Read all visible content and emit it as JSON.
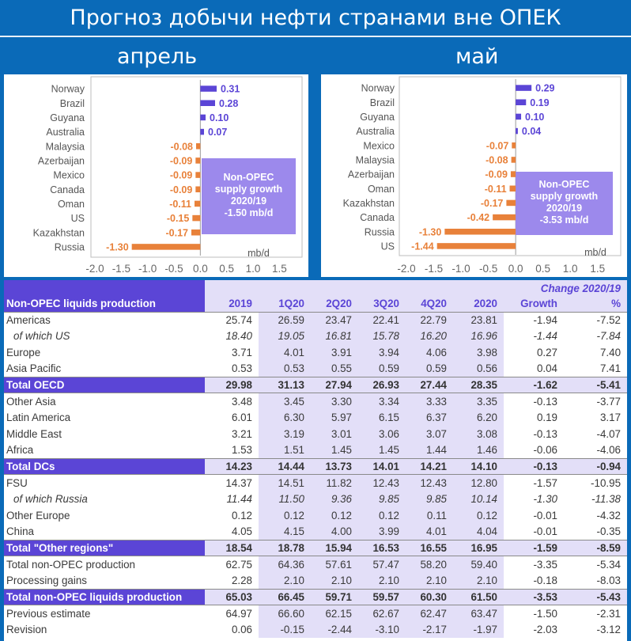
{
  "title": "Прогноз добычи нефти странами вне ОПЕК",
  "months": {
    "left": "апрель",
    "right": "май"
  },
  "chart_data": [
    {
      "type": "bar",
      "orientation": "horizontal",
      "categories": [
        "Norway",
        "Brazil",
        "Guyana",
        "Australia",
        "Malaysia",
        "Azerbaijan",
        "Mexico",
        "Canada",
        "Oman",
        "US",
        "Kazakhstan",
        "Russia"
      ],
      "values": [
        0.31,
        0.28,
        0.1,
        0.07,
        -0.08,
        -0.09,
        -0.09,
        -0.09,
        -0.11,
        -0.15,
        -0.17,
        -1.3
      ],
      "labels": [
        "0.31",
        "0.28",
        "0.10",
        "0.07",
        "-0.08",
        "-0.09",
        "-0.09",
        "-0.09",
        "-0.11",
        "-0.15",
        "-0.17",
        "-1.30"
      ],
      "xticks": [
        "-2.0",
        "-1.5",
        "-1.0",
        "-0.5",
        "0.0",
        "0.5",
        "1.0",
        "1.5"
      ],
      "xlim": [
        -2.0,
        1.75
      ],
      "unit": "mb/d",
      "colors": {
        "positive": "#5b45d6",
        "negative": "#e8813a"
      },
      "annotation": [
        "Non-OPEC",
        "supply growth",
        "2020/19",
        "-1.50 mb/d"
      ]
    },
    {
      "type": "bar",
      "orientation": "horizontal",
      "categories": [
        "Norway",
        "Brazil",
        "Guyana",
        "Australia",
        "Mexico",
        "Malaysia",
        "Azerbaijan",
        "Oman",
        "Kazakhstan",
        "Canada",
        "Russia",
        "US"
      ],
      "values": [
        0.29,
        0.19,
        0.1,
        0.04,
        -0.07,
        -0.08,
        -0.09,
        -0.11,
        -0.17,
        -0.42,
        -1.3,
        -1.44
      ],
      "labels": [
        "0.29",
        "0.19",
        "0.10",
        "0.04",
        "-0.07",
        "-0.08",
        "-0.09",
        "-0.11",
        "-0.17",
        "-0.42",
        "-1.30",
        "-1.44"
      ],
      "xticks": [
        "-2.0",
        "-1.5",
        "-1.0",
        "-0.5",
        "0.0",
        "0.5",
        "1.0",
        "1.5"
      ],
      "xlim": [
        -2.0,
        1.75
      ],
      "unit": "mb/d",
      "colors": {
        "positive": "#5b45d6",
        "negative": "#e8813a"
      },
      "annotation": [
        "Non-OPEC",
        "supply growth",
        "2020/19",
        "-3.53 mb/d"
      ]
    }
  ],
  "table": {
    "change_header": "Change 2020/19",
    "columns": [
      "Non-OPEC liquids production",
      "2019",
      "1Q20",
      "2Q20",
      "3Q20",
      "4Q20",
      "2020",
      "Growth",
      "%"
    ],
    "rows": [
      {
        "label": "Americas",
        "values": [
          "25.74",
          "26.59",
          "23.47",
          "22.41",
          "22.79",
          "23.81",
          "-1.94",
          "-7.52"
        ],
        "style": "normal"
      },
      {
        "label": "of which US",
        "values": [
          "18.40",
          "19.05",
          "16.81",
          "15.78",
          "16.20",
          "16.96",
          "-1.44",
          "-7.84"
        ],
        "style": "sub"
      },
      {
        "label": "Europe",
        "values": [
          "3.71",
          "4.01",
          "3.91",
          "3.94",
          "4.06",
          "3.98",
          "0.27",
          "7.40"
        ],
        "style": "normal"
      },
      {
        "label": "Asia Pacific",
        "values": [
          "0.53",
          "0.53",
          "0.55",
          "0.59",
          "0.59",
          "0.56",
          "0.04",
          "7.41"
        ],
        "style": "normal"
      },
      {
        "label": "Total OECD",
        "values": [
          "29.98",
          "31.13",
          "27.94",
          "26.93",
          "27.44",
          "28.35",
          "-1.62",
          "-5.41"
        ],
        "style": "total"
      },
      {
        "label": "Other Asia",
        "values": [
          "3.48",
          "3.45",
          "3.30",
          "3.34",
          "3.33",
          "3.35",
          "-0.13",
          "-3.77"
        ],
        "style": "normal"
      },
      {
        "label": "Latin America",
        "values": [
          "6.01",
          "6.30",
          "5.97",
          "6.15",
          "6.37",
          "6.20",
          "0.19",
          "3.17"
        ],
        "style": "normal"
      },
      {
        "label": "Middle East",
        "values": [
          "3.21",
          "3.19",
          "3.01",
          "3.06",
          "3.07",
          "3.08",
          "-0.13",
          "-4.07"
        ],
        "style": "normal"
      },
      {
        "label": "Africa",
        "values": [
          "1.53",
          "1.51",
          "1.45",
          "1.45",
          "1.44",
          "1.46",
          "-0.06",
          "-4.06"
        ],
        "style": "normal"
      },
      {
        "label": "Total DCs",
        "values": [
          "14.23",
          "14.44",
          "13.73",
          "14.01",
          "14.21",
          "14.10",
          "-0.13",
          "-0.94"
        ],
        "style": "total"
      },
      {
        "label": "FSU",
        "values": [
          "14.37",
          "14.51",
          "11.82",
          "12.43",
          "12.43",
          "12.80",
          "-1.57",
          "-10.95"
        ],
        "style": "normal"
      },
      {
        "label": "of which Russia",
        "values": [
          "11.44",
          "11.50",
          "9.36",
          "9.85",
          "9.85",
          "10.14",
          "-1.30",
          "-11.38"
        ],
        "style": "sub"
      },
      {
        "label": "Other Europe",
        "values": [
          "0.12",
          "0.12",
          "0.12",
          "0.12",
          "0.11",
          "0.12",
          "-0.01",
          "-4.32"
        ],
        "style": "normal"
      },
      {
        "label": "China",
        "values": [
          "4.05",
          "4.15",
          "4.00",
          "3.99",
          "4.01",
          "4.04",
          "-0.01",
          "-0.35"
        ],
        "style": "normal"
      },
      {
        "label": "Total \"Other regions\"",
        "values": [
          "18.54",
          "18.78",
          "15.94",
          "16.53",
          "16.55",
          "16.95",
          "-1.59",
          "-8.59"
        ],
        "style": "total"
      },
      {
        "label": "Total non-OPEC production",
        "values": [
          "62.75",
          "64.36",
          "57.61",
          "57.47",
          "58.20",
          "59.40",
          "-3.35",
          "-5.34"
        ],
        "style": "normal"
      },
      {
        "label": "Processing gains",
        "values": [
          "2.28",
          "2.10",
          "2.10",
          "2.10",
          "2.10",
          "2.10",
          "-0.18",
          "-8.03"
        ],
        "style": "normal"
      },
      {
        "label": "Total non-OPEC liquids production",
        "values": [
          "65.03",
          "66.45",
          "59.71",
          "59.57",
          "60.30",
          "61.50",
          "-3.53",
          "-5.43"
        ],
        "style": "total"
      },
      {
        "label": "Previous estimate",
        "values": [
          "64.97",
          "66.60",
          "62.15",
          "62.67",
          "62.47",
          "63.47",
          "-1.50",
          "-2.31"
        ],
        "style": "normal"
      },
      {
        "label": "Revision",
        "values": [
          "0.06",
          "-0.15",
          "-2.44",
          "-3.10",
          "-2.17",
          "-1.97",
          "-2.03",
          "-3.12"
        ],
        "style": "normal"
      }
    ]
  }
}
